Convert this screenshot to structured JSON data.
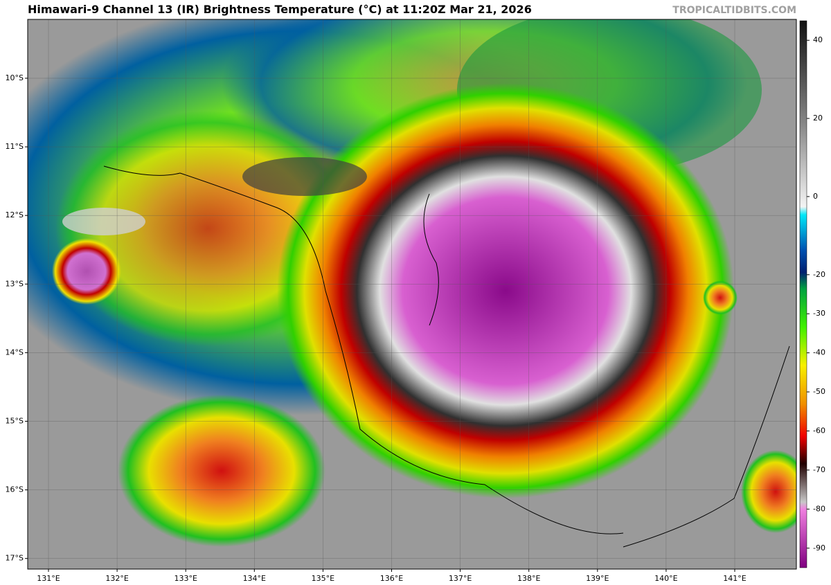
{
  "title": "Himawari-9 Channel 13 (IR) Brightness Temperature (°C) at 11:20Z Mar 21, 2026",
  "watermark": "TROPICALTIDBITS.COM",
  "map": {
    "lon_labels": [
      "131°E",
      "132°E",
      "133°E",
      "134°E",
      "135°E",
      "136°E",
      "137°E",
      "138°E",
      "139°E",
      "140°E",
      "141°E"
    ],
    "lat_labels": [
      "10°S",
      "11°S",
      "12°S",
      "13°S",
      "14°S",
      "15°S",
      "16°S",
      "17°S"
    ]
  },
  "colorbar": {
    "range": [
      -95,
      45
    ],
    "ticks": [
      40,
      20,
      0,
      -20,
      -30,
      -40,
      -50,
      -60,
      -70,
      -80,
      -90
    ]
  }
}
